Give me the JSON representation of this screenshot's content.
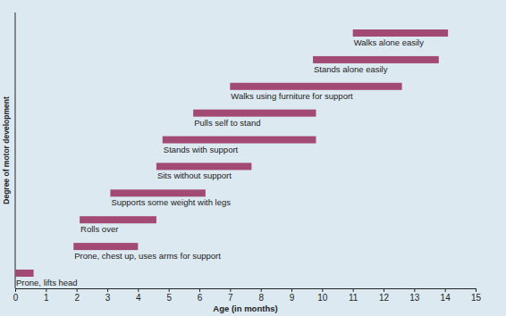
{
  "chart_data": {
    "type": "range_bar",
    "orientation": "horizontal",
    "x_label": "Age (in months)",
    "y_label": "Degree of motor development",
    "categories": [
      "Prone, lifts head",
      "Prone, chest up, uses arms for support",
      "Rolls over",
      "Supports some weight with legs",
      "Sits without support",
      "Stands with support",
      "Pulls self to stand",
      "Walks using furniture for support",
      "Stands alone easily",
      "Walks alone easily"
    ],
    "start": [
      0,
      1.9,
      2.1,
      3.1,
      4.6,
      4.8,
      5.8,
      7.0,
      9.7,
      11.0
    ],
    "end": [
      0.6,
      4.0,
      4.6,
      6.2,
      7.7,
      9.8,
      9.8,
      12.6,
      13.8,
      14.1
    ],
    "color": "#a24a74",
    "xlim": [
      0,
      15
    ],
    "xticks": [
      0,
      1,
      2,
      3,
      4,
      5,
      6,
      7,
      8,
      9,
      10,
      11,
      12,
      13,
      14,
      15
    ],
    "grid": false,
    "tick_labels": "x"
  }
}
